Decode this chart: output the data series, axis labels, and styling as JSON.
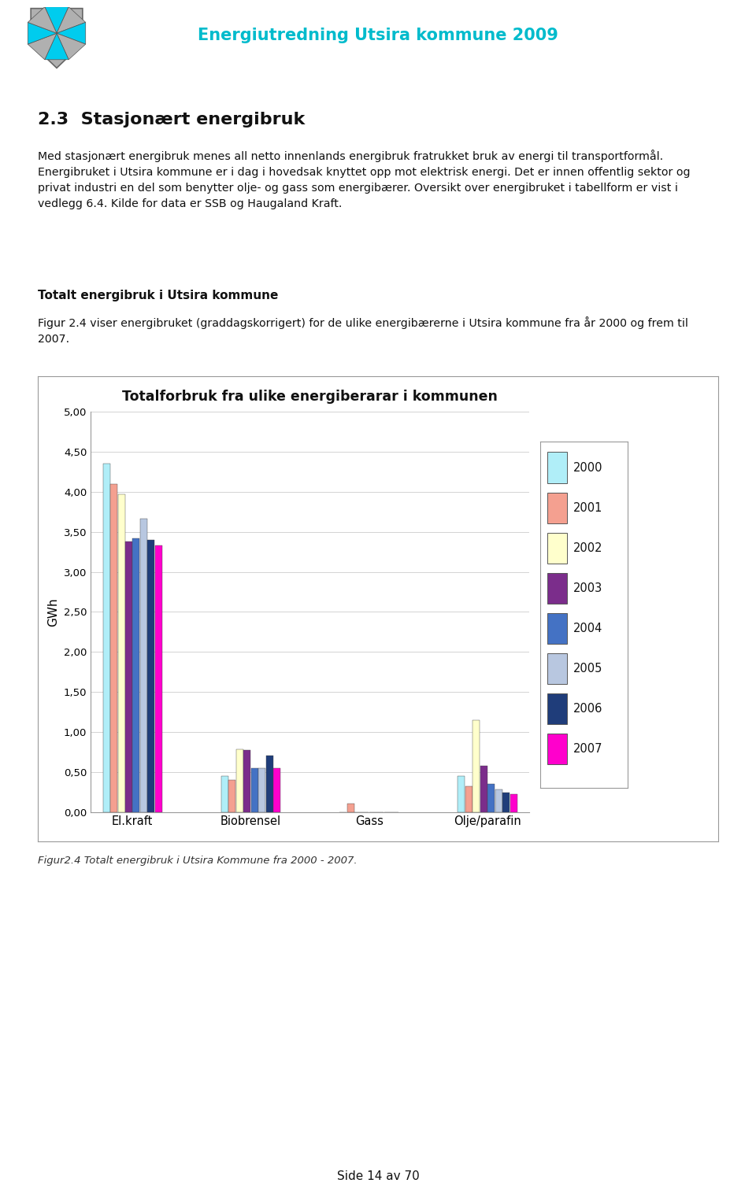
{
  "title": "Totalforbruk fra ulike energiberarar i kommunen",
  "ylabel": "GWh",
  "categories": [
    "El.kraft",
    "Biobrensel",
    "Gass",
    "Olje/parafin"
  ],
  "years": [
    "2000",
    "2001",
    "2002",
    "2003",
    "2004",
    "2005",
    "2006",
    "2007"
  ],
  "colors": [
    "#b0eef8",
    "#f4a090",
    "#ffffcc",
    "#7b2d8b",
    "#4472c4",
    "#b8c7e0",
    "#1f3d7a",
    "#ff00cc"
  ],
  "values": {
    "El.kraft": [
      4.35,
      4.1,
      3.97,
      3.38,
      3.42,
      3.67,
      3.4,
      3.33
    ],
    "Biobrensel": [
      0.45,
      0.4,
      0.78,
      0.77,
      0.55,
      0.55,
      0.7,
      0.55
    ],
    "Gass": [
      0.0,
      0.1,
      0.0,
      0.0,
      0.0,
      0.0,
      0.0,
      0.0
    ],
    "Olje/parafin": [
      0.45,
      0.32,
      1.15,
      0.58,
      0.35,
      0.28,
      0.24,
      0.22
    ]
  },
  "ylim": [
    0,
    5.0
  ],
  "yticks": [
    0.0,
    0.5,
    1.0,
    1.5,
    2.0,
    2.5,
    3.0,
    3.5,
    4.0,
    4.5,
    5.0
  ],
  "ytick_labels": [
    "0,00",
    "0,50",
    "1,00",
    "1,50",
    "2,00",
    "2,50",
    "3,00",
    "3,50",
    "4,00",
    "4,50",
    "5,00"
  ],
  "plot_bg_color": "#ffffff",
  "grid_color": "#cccccc",
  "header_text": "Energiutredning Utsira kommune 2009",
  "header_color": "#00bbcc",
  "section_title": "2.3  Stasjonært energibruk",
  "body_text1": "Med stasjonært energibruk menes all netto innenlands energibruk fratrukket bruk av energi til transportformål.\nEnergibruket i Utsira kommune er i dag i hovedsak knyttet opp mot elektrisk energi. Det er innen offentlig sektor og\nprivat industri en del som benytter olje- og gass som energibærer. Oversikt over energibruket i tabellform er vist i\nvedlegg 6.4. Kilde for data er SSB og Haugaland Kraft.",
  "subsection_title": "Totalt energibruk i Utsira kommune",
  "body_text2": "Figur 2.4 viser energibruket (graddagskorrigert) for de ulike energibærerne i Utsira kommune fra år 2000 og frem til\n2007.",
  "caption": "Figur2.4 Totalt energibruk i Utsira Kommune fra 2000 - 2007.",
  "footer_text": "Side 14 av 70",
  "page_bg": "#ffffff",
  "shield_blue": "#00ccee",
  "shield_gray": "#b0b0b0"
}
